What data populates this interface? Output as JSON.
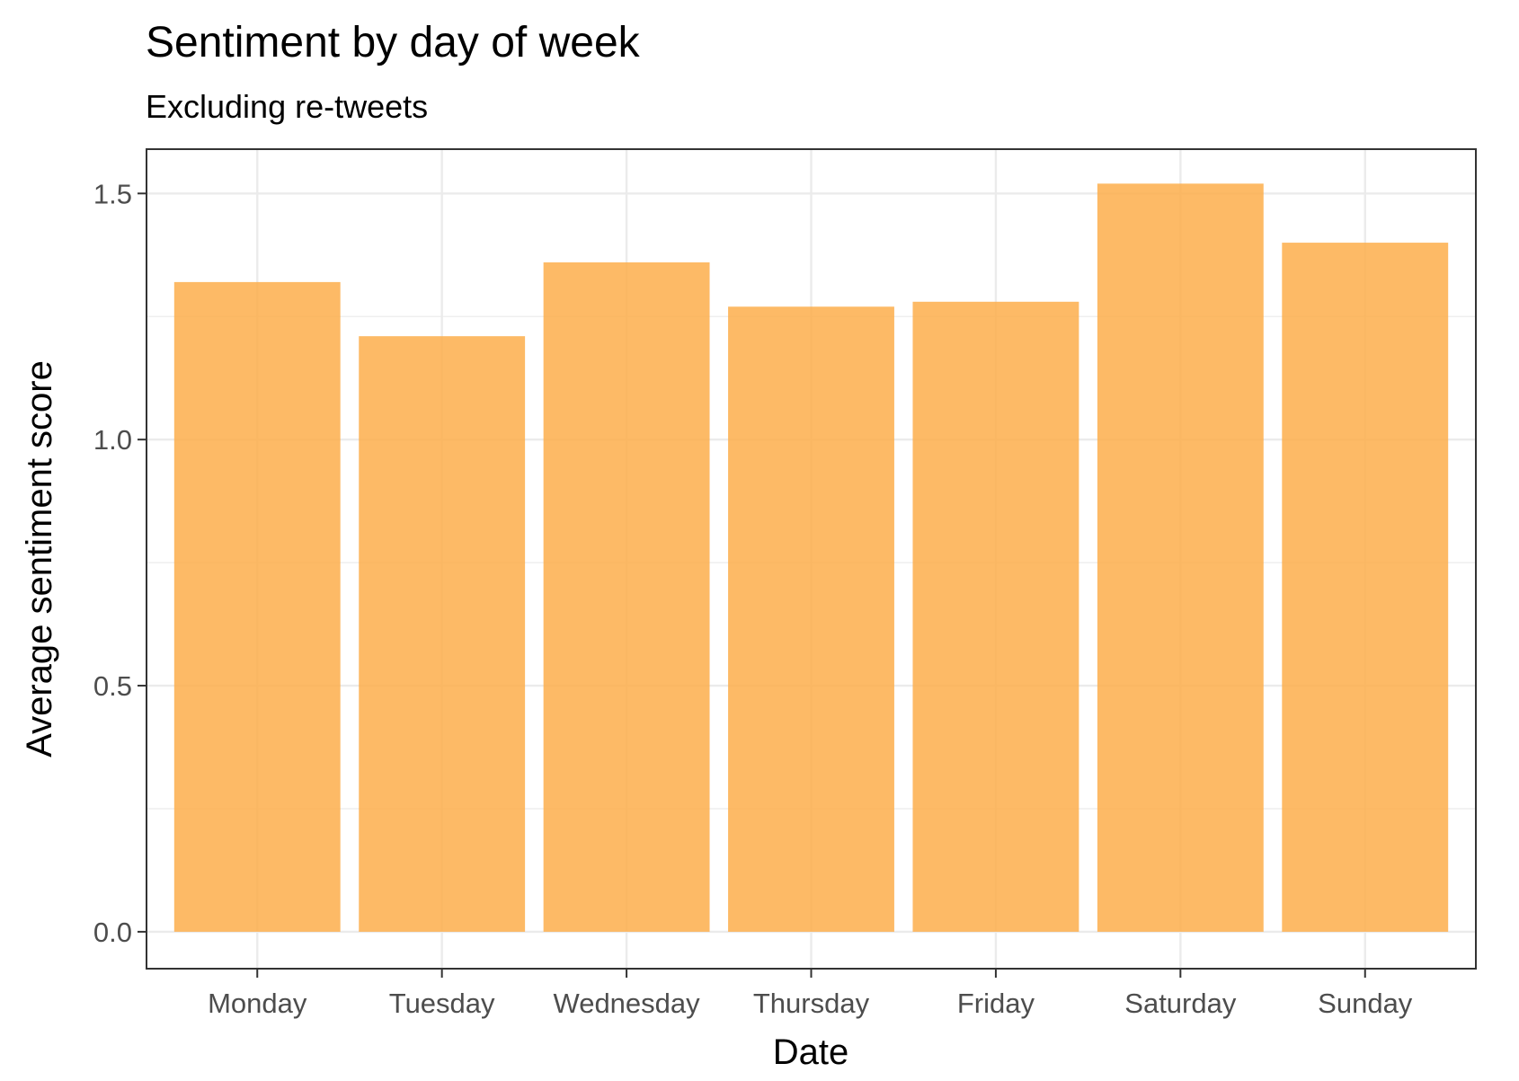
{
  "chart_data": {
    "type": "bar",
    "title": "Sentiment by day of week",
    "subtitle": "Excluding re-tweets",
    "xlabel": "Date",
    "ylabel": "Average sentiment score",
    "categories": [
      "Monday",
      "Tuesday",
      "Wednesday",
      "Thursday",
      "Friday",
      "Saturday",
      "Sunday"
    ],
    "values": [
      1.32,
      1.21,
      1.36,
      1.27,
      1.28,
      1.52,
      1.4
    ],
    "ylim": [
      -0.075,
      1.59
    ],
    "yticks": [
      0.0,
      0.5,
      1.0,
      1.5
    ],
    "ytick_labels": [
      "0.0",
      "0.5",
      "1.0",
      "1.5"
    ],
    "bar_color": "#fdae4b",
    "grid": true,
    "legend": "none"
  }
}
